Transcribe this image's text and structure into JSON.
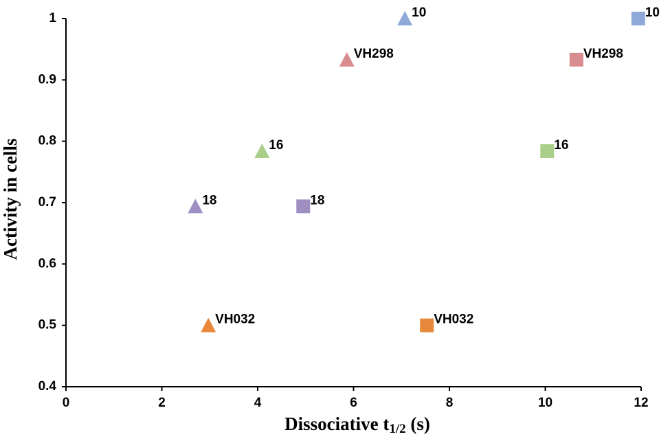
{
  "chart_data": {
    "type": "scatter",
    "xlabel_parts": [
      "Dissociative t",
      "1/2",
      " (s)"
    ],
    "ylabel": "Activity in cells",
    "xlim": [
      0,
      12
    ],
    "xticks": [
      0,
      2,
      4,
      6,
      8,
      10,
      12
    ],
    "ylim": [
      0.4,
      1
    ],
    "yticks": [
      0.4,
      0.5,
      0.6,
      0.7,
      0.8,
      0.9,
      1
    ],
    "grid": false,
    "series": [
      {
        "marker": "triangle",
        "x": [
          7.07,
          5.86,
          4.09,
          2.7,
          2.97
        ],
        "values": [
          1,
          0.933,
          0.784,
          0.694,
          0.5
        ],
        "labels": [
          "10",
          "VH298",
          "16",
          "18",
          "VH032"
        ],
        "colors": [
          "#8ea9d9",
          "#d98c8f",
          "#a9cf8a",
          "#9e8ec2",
          "#e8883a"
        ]
      },
      {
        "marker": "square",
        "x": [
          11.94,
          10.65,
          10.04,
          4.95,
          7.53
        ],
        "values": [
          1,
          0.933,
          0.784,
          0.694,
          0.5
        ],
        "labels": [
          "10",
          "VH298",
          "16",
          "18",
          "VH032"
        ],
        "colors": [
          "#8ea9d9",
          "#d98c8f",
          "#a9cf8a",
          "#9e8ec2",
          "#e8883a"
        ]
      }
    ]
  }
}
